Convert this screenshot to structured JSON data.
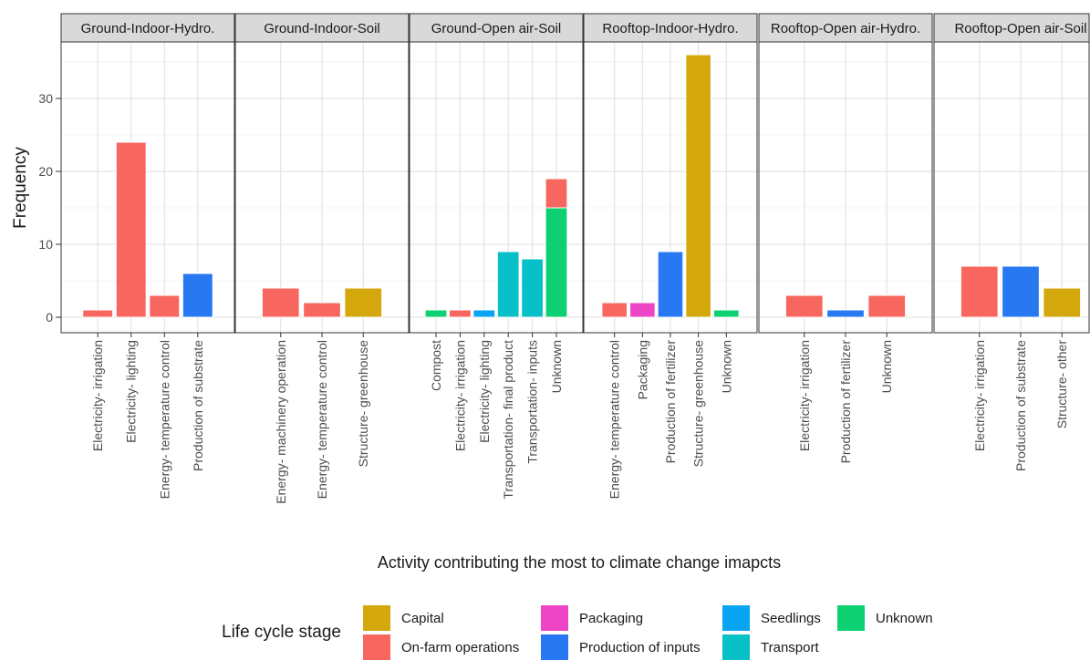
{
  "chart_data": {
    "type": "bar",
    "xlabel": "Activity contributing the most to climate change imapcts",
    "ylabel": "Frequency",
    "ylim": [
      0,
      38
    ],
    "yticks": [
      0,
      10,
      20,
      30
    ],
    "grid": true,
    "legend": {
      "title": "Life cycle stage",
      "placement": "bottom",
      "entries": [
        {
          "name": "Capital",
          "color": "#D4A80C"
        },
        {
          "name": "On-farm operations",
          "color": "#F8675F"
        },
        {
          "name": "Packaging",
          "color": "#ED45C5"
        },
        {
          "name": "Production of inputs",
          "color": "#2778F1"
        },
        {
          "name": "Seedlings",
          "color": "#07A5F2"
        },
        {
          "name": "Transport",
          "color": "#08C0C8"
        },
        {
          "name": "Unknown",
          "color": "#0CD072"
        }
      ]
    },
    "facets": [
      {
        "title": "Ground-Indoor-Hydro.",
        "categories": [
          "Electricity- irrigation",
          "Electricity- lighting",
          "Energy- temperature control",
          "Production of substrate"
        ],
        "bars": [
          [
            {
              "stage": "On-farm operations",
              "value": 1
            }
          ],
          [
            {
              "stage": "On-farm operations",
              "value": 24
            }
          ],
          [
            {
              "stage": "On-farm operations",
              "value": 3
            }
          ],
          [
            {
              "stage": "Production of inputs",
              "value": 6
            }
          ]
        ]
      },
      {
        "title": "Ground-Indoor-Soil",
        "categories": [
          "Energy- machinery operation",
          "Energy- temperature control",
          "Structure- greenhouse"
        ],
        "bars": [
          [
            {
              "stage": "On-farm operations",
              "value": 4
            }
          ],
          [
            {
              "stage": "On-farm operations",
              "value": 2
            }
          ],
          [
            {
              "stage": "Capital",
              "value": 4
            }
          ]
        ]
      },
      {
        "title": "Ground-Open air-Soil",
        "categories": [
          "Compost",
          "Electricity- irrigation",
          "Electricity- lighting",
          "Transportation- final product",
          "Transportation- inputs",
          "Unknown"
        ],
        "bars": [
          [
            {
              "stage": "Unknown",
              "value": 1
            }
          ],
          [
            {
              "stage": "On-farm operations",
              "value": 1
            }
          ],
          [
            {
              "stage": "Seedlings",
              "value": 1
            }
          ],
          [
            {
              "stage": "Transport",
              "value": 9
            }
          ],
          [
            {
              "stage": "Transport",
              "value": 8
            }
          ],
          [
            {
              "stage": "Unknown",
              "value": 15
            },
            {
              "stage": "On-farm operations",
              "value": 4
            }
          ]
        ]
      },
      {
        "title": "Rooftop-Indoor-Hydro.",
        "categories": [
          "Energy- temperature control",
          "Packaging",
          "Production of fertilizer",
          "Structure- greenhouse",
          "Unknown"
        ],
        "bars": [
          [
            {
              "stage": "On-farm operations",
              "value": 2
            }
          ],
          [
            {
              "stage": "Packaging",
              "value": 2
            }
          ],
          [
            {
              "stage": "Production of inputs",
              "value": 9
            }
          ],
          [
            {
              "stage": "Capital",
              "value": 36
            }
          ],
          [
            {
              "stage": "Unknown",
              "value": 1
            }
          ]
        ]
      },
      {
        "title": "Rooftop-Open air-Hydro.",
        "categories": [
          "Electricity- irrigation",
          "Production of fertilizer",
          "Unknown"
        ],
        "bars": [
          [
            {
              "stage": "On-farm operations",
              "value": 3
            }
          ],
          [
            {
              "stage": "Production of inputs",
              "value": 1
            }
          ],
          [
            {
              "stage": "On-farm operations",
              "value": 3
            }
          ]
        ]
      },
      {
        "title": "Rooftop-Open air-Soil",
        "categories": [
          "Electricity- irrigation",
          "Production of substrate",
          "Structure- other"
        ],
        "bars": [
          [
            {
              "stage": "On-farm operations",
              "value": 7
            }
          ],
          [
            {
              "stage": "Production of inputs",
              "value": 7
            }
          ],
          [
            {
              "stage": "Capital",
              "value": 4
            }
          ]
        ]
      }
    ]
  }
}
